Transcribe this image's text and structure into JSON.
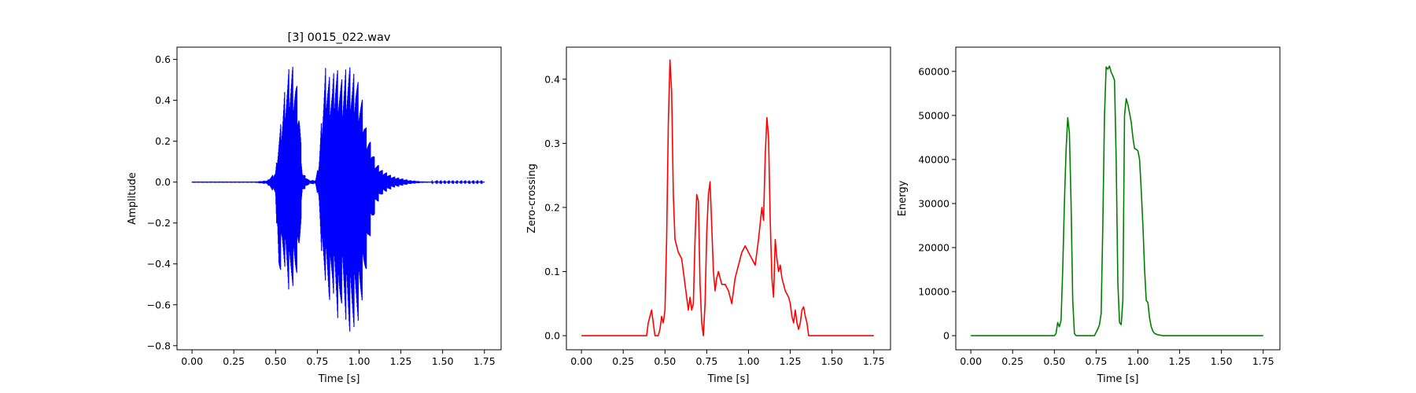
{
  "chart_data": [
    {
      "type": "line",
      "title": "[3] 0015_022.wav",
      "xlabel": "Time [s]",
      "ylabel": "Amplitude",
      "xlim": [
        -0.09,
        1.85
      ],
      "ylim": [
        -0.82,
        0.66
      ],
      "xticks": [
        0.0,
        0.25,
        0.5,
        0.75,
        1.0,
        1.25,
        1.5,
        1.75
      ],
      "xtick_labels": [
        "0.00",
        "0.25",
        "0.50",
        "0.75",
        "1.00",
        "1.25",
        "1.50",
        "1.75"
      ],
      "yticks": [
        -0.8,
        -0.6,
        -0.4,
        -0.2,
        0.0,
        0.2,
        0.4,
        0.6
      ],
      "ytick_labels": [
        "−0.8",
        "−0.6",
        "−0.4",
        "−0.2",
        "0.0",
        "0.2",
        "0.4",
        "0.6"
      ],
      "color": "#0000ff",
      "style": "waveform",
      "series": [
        {
          "envelope": {
            "t": [
              0.0,
              0.38,
              0.45,
              0.5,
              0.52,
              0.54,
              0.56,
              0.58,
              0.6,
              0.62,
              0.64,
              0.66,
              0.7,
              0.74,
              0.76,
              0.78,
              0.8,
              0.82,
              0.84,
              0.86,
              0.88,
              0.9,
              0.92,
              0.94,
              0.96,
              0.98,
              1.0,
              1.02,
              1.04,
              1.06,
              1.1,
              1.14,
              1.2,
              1.3,
              1.37,
              1.45,
              1.75
            ],
            "upper": [
              0.003,
              0.003,
              0.008,
              0.05,
              0.22,
              0.34,
              0.5,
              0.56,
              0.59,
              0.53,
              0.4,
              0.05,
              0.01,
              0.01,
              0.1,
              0.38,
              0.57,
              0.53,
              0.51,
              0.58,
              0.55,
              0.5,
              0.57,
              0.58,
              0.54,
              0.56,
              0.47,
              0.4,
              0.28,
              0.22,
              0.1,
              0.06,
              0.03,
              0.01,
              0.004,
              0.002,
              0.002
            ],
            "lower": [
              -0.003,
              -0.003,
              -0.01,
              -0.06,
              -0.5,
              -0.38,
              -0.43,
              -0.55,
              -0.52,
              -0.49,
              -0.4,
              -0.05,
              -0.01,
              -0.01,
              -0.1,
              -0.42,
              -0.5,
              -0.59,
              -0.54,
              -0.6,
              -0.72,
              -0.58,
              -0.68,
              -0.76,
              -0.74,
              -0.7,
              -0.67,
              -0.58,
              -0.45,
              -0.3,
              -0.12,
              -0.06,
              -0.03,
              -0.01,
              -0.004,
              -0.002,
              -0.002
            ]
          }
        }
      ]
    },
    {
      "type": "line",
      "title": "",
      "xlabel": "Time [s]",
      "ylabel": "Zero-crossing",
      "xlim": [
        -0.09,
        1.85
      ],
      "ylim": [
        -0.022,
        0.45
      ],
      "xticks": [
        0.0,
        0.25,
        0.5,
        0.75,
        1.0,
        1.25,
        1.5,
        1.75
      ],
      "xtick_labels": [
        "0.00",
        "0.25",
        "0.50",
        "0.75",
        "1.00",
        "1.25",
        "1.50",
        "1.75"
      ],
      "yticks": [
        0.0,
        0.1,
        0.2,
        0.3,
        0.4
      ],
      "ytick_labels": [
        "0.0",
        "0.1",
        "0.2",
        "0.3",
        "0.4"
      ],
      "color": "#ff0000",
      "series": [
        {
          "x": [
            0.0,
            0.39,
            0.4,
            0.42,
            0.43,
            0.44,
            0.46,
            0.47,
            0.48,
            0.49,
            0.5,
            0.51,
            0.52,
            0.53,
            0.54,
            0.55,
            0.56,
            0.57,
            0.58,
            0.6,
            0.62,
            0.63,
            0.64,
            0.65,
            0.66,
            0.67,
            0.68,
            0.69,
            0.7,
            0.71,
            0.72,
            0.73,
            0.74,
            0.75,
            0.76,
            0.77,
            0.78,
            0.79,
            0.8,
            0.81,
            0.82,
            0.84,
            0.86,
            0.88,
            0.9,
            0.92,
            0.94,
            0.96,
            0.98,
            1.0,
            1.02,
            1.04,
            1.06,
            1.08,
            1.09,
            1.1,
            1.11,
            1.12,
            1.13,
            1.14,
            1.15,
            1.16,
            1.17,
            1.18,
            1.19,
            1.2,
            1.22,
            1.24,
            1.25,
            1.26,
            1.27,
            1.28,
            1.29,
            1.3,
            1.31,
            1.32,
            1.33,
            1.34,
            1.35,
            1.36,
            1.37,
            1.75
          ],
          "y": [
            0.0,
            0.0,
            0.02,
            0.04,
            0.02,
            0.0,
            0.0,
            0.01,
            0.03,
            0.02,
            0.04,
            0.15,
            0.33,
            0.43,
            0.38,
            0.22,
            0.15,
            0.14,
            0.13,
            0.12,
            0.08,
            0.06,
            0.04,
            0.06,
            0.04,
            0.05,
            0.15,
            0.22,
            0.21,
            0.08,
            0.02,
            0.0,
            0.05,
            0.16,
            0.22,
            0.24,
            0.17,
            0.1,
            0.07,
            0.09,
            0.1,
            0.08,
            0.08,
            0.07,
            0.05,
            0.09,
            0.11,
            0.13,
            0.14,
            0.13,
            0.12,
            0.11,
            0.15,
            0.2,
            0.18,
            0.28,
            0.34,
            0.31,
            0.18,
            0.09,
            0.06,
            0.15,
            0.12,
            0.1,
            0.11,
            0.09,
            0.07,
            0.06,
            0.05,
            0.03,
            0.02,
            0.04,
            0.02,
            0.01,
            0.02,
            0.04,
            0.045,
            0.03,
            0.02,
            0.0,
            0.0,
            0.0
          ]
        }
      ]
    },
    {
      "type": "line",
      "title": "",
      "xlabel": "Time [s]",
      "ylabel": "Energy",
      "xlim": [
        -0.09,
        1.85
      ],
      "ylim": [
        -3200,
        65500
      ],
      "xticks": [
        0.0,
        0.25,
        0.5,
        0.75,
        1.0,
        1.25,
        1.5,
        1.75
      ],
      "xtick_labels": [
        "0.00",
        "0.25",
        "0.50",
        "0.75",
        "1.00",
        "1.25",
        "1.50",
        "1.75"
      ],
      "yticks": [
        0,
        10000,
        20000,
        30000,
        40000,
        50000,
        60000
      ],
      "ytick_labels": [
        "0",
        "10000",
        "20000",
        "30000",
        "40000",
        "50000",
        "60000"
      ],
      "color": "#008000",
      "series": [
        {
          "x": [
            0.0,
            0.5,
            0.51,
            0.52,
            0.53,
            0.54,
            0.55,
            0.56,
            0.57,
            0.58,
            0.59,
            0.6,
            0.61,
            0.62,
            0.63,
            0.64,
            0.66,
            0.7,
            0.74,
            0.76,
            0.77,
            0.78,
            0.79,
            0.8,
            0.81,
            0.82,
            0.83,
            0.84,
            0.85,
            0.86,
            0.87,
            0.88,
            0.89,
            0.9,
            0.91,
            0.92,
            0.93,
            0.94,
            0.95,
            0.96,
            0.97,
            0.98,
            0.99,
            1.0,
            1.01,
            1.02,
            1.03,
            1.04,
            1.05,
            1.06,
            1.07,
            1.08,
            1.09,
            1.1,
            1.12,
            1.15,
            1.2,
            1.75
          ],
          "y": [
            0,
            0,
            500,
            3000,
            2000,
            3500,
            15000,
            30000,
            42000,
            49500,
            46000,
            30000,
            8000,
            500,
            0,
            0,
            0,
            0,
            0,
            1500,
            2500,
            5000,
            25000,
            50000,
            61000,
            60500,
            61200,
            59800,
            59000,
            58000,
            40000,
            12000,
            3000,
            2500,
            8000,
            50000,
            53800,
            52500,
            50500,
            48500,
            45000,
            42500,
            42300,
            42000,
            40000,
            33000,
            25000,
            15000,
            8000,
            7500,
            4000,
            2000,
            1000,
            500,
            200,
            0,
            0,
            0
          ]
        }
      ]
    }
  ]
}
